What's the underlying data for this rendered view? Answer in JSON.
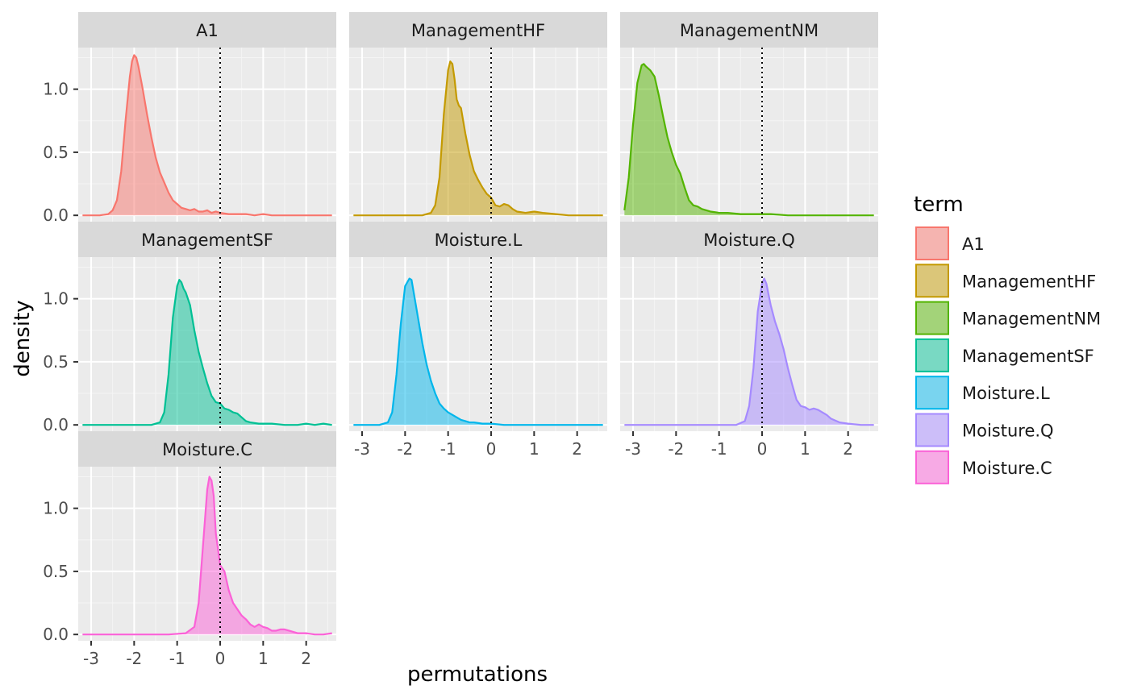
{
  "chart_data": {
    "type": "area",
    "kind": "faceted density plot",
    "xlabel": "permutations",
    "ylabel": "density",
    "xlim": [
      -3.3,
      2.7
    ],
    "ylim": [
      -0.05,
      1.33
    ],
    "x_ticks": [
      -3,
      -2,
      -1,
      0,
      1,
      2
    ],
    "x_tick_labels": [
      "-3",
      "-2",
      "-1",
      "0",
      "1",
      "2"
    ],
    "y_ticks": [
      0.0,
      0.5,
      1.0
    ],
    "y_tick_labels": [
      "0.0",
      "0.5",
      "1.0"
    ],
    "grid": true,
    "reference_line": {
      "x": 0,
      "style": "dotted"
    },
    "legend": {
      "title": "term",
      "position": "right"
    },
    "facets": [
      {
        "name": "A1",
        "color": "#F8766D",
        "x": [
          -3.2,
          -2.8,
          -2.6,
          -2.5,
          -2.4,
          -2.3,
          -2.2,
          -2.1,
          -2.05,
          -2.0,
          -1.95,
          -1.9,
          -1.8,
          -1.7,
          -1.6,
          -1.5,
          -1.4,
          -1.3,
          -1.2,
          -1.1,
          -1.0,
          -0.9,
          -0.8,
          -0.7,
          -0.6,
          -0.5,
          -0.4,
          -0.3,
          -0.2,
          -0.1,
          0.0,
          0.2,
          0.4,
          0.6,
          0.8,
          1.0,
          1.2,
          1.5,
          1.8,
          2.2,
          2.6
        ],
        "y": [
          0.0,
          0.0,
          0.01,
          0.04,
          0.12,
          0.35,
          0.75,
          1.1,
          1.22,
          1.27,
          1.25,
          1.18,
          1.0,
          0.8,
          0.62,
          0.46,
          0.34,
          0.26,
          0.18,
          0.12,
          0.09,
          0.06,
          0.05,
          0.04,
          0.05,
          0.03,
          0.03,
          0.04,
          0.02,
          0.03,
          0.02,
          0.01,
          0.01,
          0.01,
          0.0,
          0.01,
          0.0,
          0.0,
          0.0,
          0.0,
          0.0
        ]
      },
      {
        "name": "ManagementHF",
        "color": "#C49A00",
        "x": [
          -3.2,
          -2.0,
          -1.6,
          -1.4,
          -1.3,
          -1.2,
          -1.1,
          -1.0,
          -0.95,
          -0.9,
          -0.85,
          -0.8,
          -0.75,
          -0.7,
          -0.6,
          -0.5,
          -0.4,
          -0.3,
          -0.2,
          -0.1,
          0.0,
          0.1,
          0.2,
          0.3,
          0.4,
          0.5,
          0.6,
          0.8,
          1.0,
          1.2,
          1.5,
          1.8,
          2.2,
          2.6
        ],
        "y": [
          0.0,
          0.0,
          0.0,
          0.02,
          0.08,
          0.3,
          0.8,
          1.15,
          1.22,
          1.2,
          1.08,
          0.92,
          0.87,
          0.85,
          0.65,
          0.48,
          0.35,
          0.28,
          0.22,
          0.17,
          0.14,
          0.08,
          0.07,
          0.09,
          0.08,
          0.05,
          0.03,
          0.02,
          0.03,
          0.02,
          0.01,
          0.0,
          0.0,
          0.0
        ]
      },
      {
        "name": "ManagementNM",
        "color": "#53B400",
        "x": [
          -3.2,
          -3.1,
          -3.0,
          -2.9,
          -2.8,
          -2.75,
          -2.7,
          -2.6,
          -2.5,
          -2.4,
          -2.3,
          -2.2,
          -2.1,
          -2.0,
          -1.9,
          -1.8,
          -1.7,
          -1.6,
          -1.5,
          -1.4,
          -1.2,
          -1.0,
          -0.8,
          -0.5,
          -0.2,
          0.0,
          0.2,
          0.6,
          1.0,
          1.5,
          2.0,
          2.6
        ],
        "y": [
          0.04,
          0.3,
          0.72,
          1.05,
          1.19,
          1.2,
          1.18,
          1.15,
          1.1,
          0.95,
          0.78,
          0.62,
          0.5,
          0.4,
          0.33,
          0.22,
          0.12,
          0.08,
          0.07,
          0.05,
          0.03,
          0.02,
          0.02,
          0.01,
          0.01,
          0.01,
          0.01,
          0.0,
          0.0,
          0.0,
          0.0,
          0.0
        ]
      },
      {
        "name": "ManagementSF",
        "color": "#00C094",
        "x": [
          -3.2,
          -2.0,
          -1.6,
          -1.4,
          -1.3,
          -1.2,
          -1.1,
          -1.0,
          -0.95,
          -0.9,
          -0.85,
          -0.8,
          -0.7,
          -0.6,
          -0.5,
          -0.4,
          -0.3,
          -0.2,
          -0.1,
          0.0,
          0.1,
          0.2,
          0.3,
          0.4,
          0.5,
          0.6,
          0.7,
          0.9,
          1.2,
          1.5,
          1.8,
          2.0,
          2.2,
          2.4,
          2.6
        ],
        "y": [
          0.0,
          0.0,
          0.0,
          0.02,
          0.1,
          0.4,
          0.85,
          1.1,
          1.15,
          1.13,
          1.08,
          1.05,
          0.95,
          0.75,
          0.58,
          0.45,
          0.33,
          0.23,
          0.18,
          0.17,
          0.13,
          0.12,
          0.1,
          0.09,
          0.06,
          0.03,
          0.02,
          0.01,
          0.01,
          0.0,
          0.0,
          0.01,
          0.0,
          0.01,
          0.0
        ]
      },
      {
        "name": "Moisture.L",
        "color": "#00B6EB",
        "x": [
          -3.2,
          -2.6,
          -2.4,
          -2.3,
          -2.2,
          -2.1,
          -2.0,
          -1.9,
          -1.85,
          -1.8,
          -1.7,
          -1.6,
          -1.5,
          -1.4,
          -1.3,
          -1.2,
          -1.1,
          -1.0,
          -0.9,
          -0.8,
          -0.7,
          -0.6,
          -0.5,
          -0.4,
          -0.2,
          0.0,
          0.3,
          0.6,
          1.0,
          1.5,
          2.0,
          2.6
        ],
        "y": [
          0.0,
          0.0,
          0.02,
          0.1,
          0.4,
          0.8,
          1.1,
          1.16,
          1.15,
          1.05,
          0.85,
          0.65,
          0.48,
          0.35,
          0.25,
          0.17,
          0.13,
          0.1,
          0.08,
          0.06,
          0.04,
          0.03,
          0.02,
          0.02,
          0.01,
          0.01,
          0.0,
          0.0,
          0.0,
          0.0,
          0.0,
          0.0
        ]
      },
      {
        "name": "Moisture.Q",
        "color": "#A58AFF",
        "x": [
          -3.2,
          -1.0,
          -0.6,
          -0.4,
          -0.3,
          -0.2,
          -0.1,
          0.0,
          0.05,
          0.1,
          0.2,
          0.3,
          0.4,
          0.5,
          0.6,
          0.7,
          0.8,
          0.9,
          1.0,
          1.1,
          1.2,
          1.3,
          1.4,
          1.5,
          1.6,
          1.8,
          2.0,
          2.3,
          2.6
        ],
        "y": [
          0.0,
          0.0,
          0.0,
          0.03,
          0.15,
          0.45,
          0.9,
          1.12,
          1.16,
          1.12,
          0.95,
          0.82,
          0.72,
          0.6,
          0.45,
          0.32,
          0.2,
          0.15,
          0.14,
          0.12,
          0.13,
          0.12,
          0.1,
          0.08,
          0.05,
          0.02,
          0.01,
          0.0,
          0.0
        ]
      },
      {
        "name": "Moisture.C",
        "color": "#FB61D7",
        "x": [
          -3.2,
          -1.2,
          -0.8,
          -0.6,
          -0.5,
          -0.4,
          -0.3,
          -0.25,
          -0.2,
          -0.15,
          -0.1,
          0.0,
          0.1,
          0.2,
          0.3,
          0.4,
          0.5,
          0.6,
          0.7,
          0.8,
          0.9,
          1.0,
          1.1,
          1.2,
          1.3,
          1.4,
          1.5,
          1.6,
          1.8,
          2.0,
          2.2,
          2.4,
          2.6
        ],
        "y": [
          0.0,
          0.0,
          0.01,
          0.06,
          0.25,
          0.7,
          1.15,
          1.25,
          1.22,
          1.1,
          0.8,
          0.55,
          0.5,
          0.35,
          0.25,
          0.2,
          0.15,
          0.12,
          0.08,
          0.06,
          0.08,
          0.06,
          0.05,
          0.03,
          0.03,
          0.04,
          0.04,
          0.03,
          0.01,
          0.01,
          0.0,
          0.0,
          0.01
        ]
      }
    ]
  }
}
